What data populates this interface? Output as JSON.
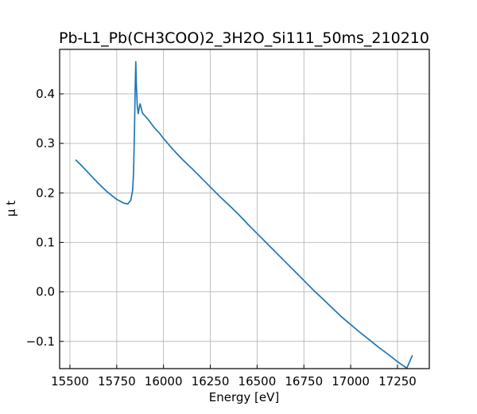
{
  "chart_data": {
    "type": "line",
    "title": "Pb-L1_Pb(CH3COO)2_3H2O_Si111_50ms_210210",
    "xlabel": "Energy [eV]",
    "ylabel": "μ t",
    "xlim": [
      15445,
      17420
    ],
    "ylim": [
      -0.155,
      0.49
    ],
    "xticks": [
      15500,
      15750,
      16000,
      16250,
      16500,
      16750,
      17000,
      17250
    ],
    "yticks": [
      -0.1,
      0.0,
      0.1,
      0.2,
      0.3,
      0.4
    ],
    "ytick_labels": [
      "−0.1",
      "0.0",
      "0.1",
      "0.2",
      "0.3",
      "0.4"
    ],
    "grid": true,
    "series": [
      {
        "color": "#1f77b4",
        "x": [
          15530,
          15560,
          15600,
          15650,
          15700,
          15750,
          15790,
          15810,
          15825,
          15835,
          15840,
          15845,
          15848,
          15852,
          15855,
          15860,
          15865,
          15870,
          15875,
          15880,
          15885,
          15890,
          15900,
          15925,
          15950,
          15975,
          16000,
          16050,
          16100,
          16150,
          16200,
          16250,
          16300,
          16350,
          16400,
          16450,
          16500,
          16550,
          16600,
          16650,
          16700,
          16750,
          16800,
          16850,
          16900,
          16950,
          17000,
          17050,
          17100,
          17150,
          17200,
          17250,
          17300,
          17330
        ],
        "y": [
          0.267,
          0.256,
          0.24,
          0.22,
          0.202,
          0.187,
          0.179,
          0.178,
          0.185,
          0.205,
          0.24,
          0.33,
          0.4,
          0.465,
          0.42,
          0.375,
          0.36,
          0.372,
          0.38,
          0.373,
          0.364,
          0.36,
          0.356,
          0.345,
          0.332,
          0.322,
          0.31,
          0.288,
          0.268,
          0.25,
          0.231,
          0.212,
          0.193,
          0.175,
          0.157,
          0.137,
          0.118,
          0.099,
          0.08,
          0.061,
          0.042,
          0.023,
          0.004,
          -0.014,
          -0.032,
          -0.05,
          -0.066,
          -0.082,
          -0.097,
          -0.112,
          -0.126,
          -0.141,
          -0.154,
          -0.128
        ]
      }
    ]
  }
}
